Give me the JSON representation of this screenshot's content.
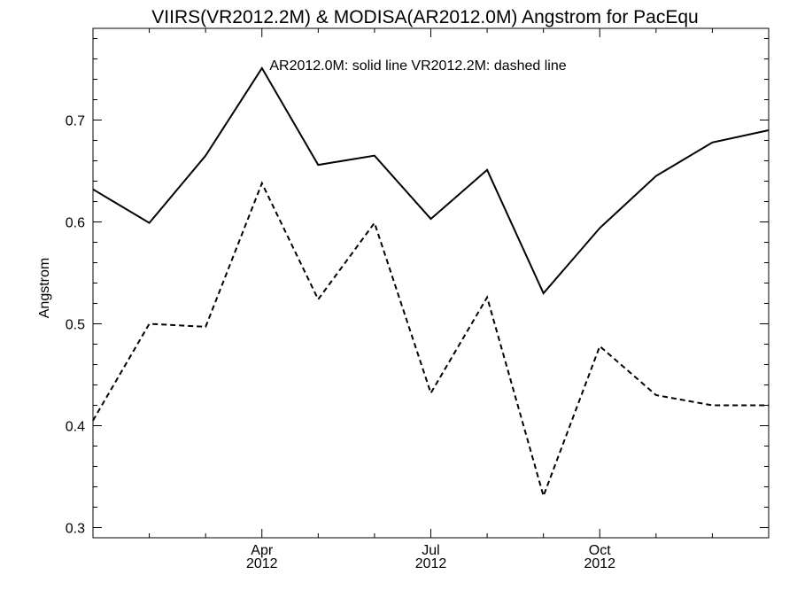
{
  "chart_data": {
    "type": "line",
    "title": "VIIRS(VR2012.2M) & MODISA(AR2012.0M)  Angstrom for PacEqu",
    "annotation": "AR2012.0M: solid line   VR2012.2M: dashed line",
    "xlabel": "",
    "ylabel": "Angstrom",
    "x": [
      "2012-01",
      "2012-02",
      "2012-03",
      "2012-04",
      "2012-05",
      "2012-06",
      "2012-07",
      "2012-08",
      "2012-09",
      "2012-10",
      "2012-11",
      "2012-12",
      "2013-01"
    ],
    "xlim": [
      "2012-01",
      "2013-01"
    ],
    "ylim": [
      0.29,
      0.79
    ],
    "yticks": [
      0.3,
      0.4,
      0.5,
      0.6,
      0.7
    ],
    "ytick_labels": [
      "0.3",
      "0.4",
      "0.5",
      "0.6",
      "0.7"
    ],
    "xticks": [
      {
        "x": "2012-04",
        "label": "Apr",
        "sublabel": "2012"
      },
      {
        "x": "2012-07",
        "label": "Jul",
        "sublabel": "2012"
      },
      {
        "x": "2012-10",
        "label": "Oct",
        "sublabel": "2012"
      }
    ],
    "series": [
      {
        "name": "AR2012.0M",
        "style": "solid",
        "color": "#000000",
        "values": [
          0.632,
          0.599,
          0.665,
          0.751,
          0.656,
          0.665,
          0.603,
          0.651,
          0.53,
          0.594,
          0.645,
          0.678,
          0.69
        ]
      },
      {
        "name": "VR2012.2M",
        "style": "dashed",
        "color": "#000000",
        "values": [
          0.405,
          0.5,
          0.497,
          0.638,
          0.524,
          0.599,
          0.432,
          0.526,
          0.331,
          0.478,
          0.43,
          0.42,
          0.42
        ]
      }
    ]
  }
}
